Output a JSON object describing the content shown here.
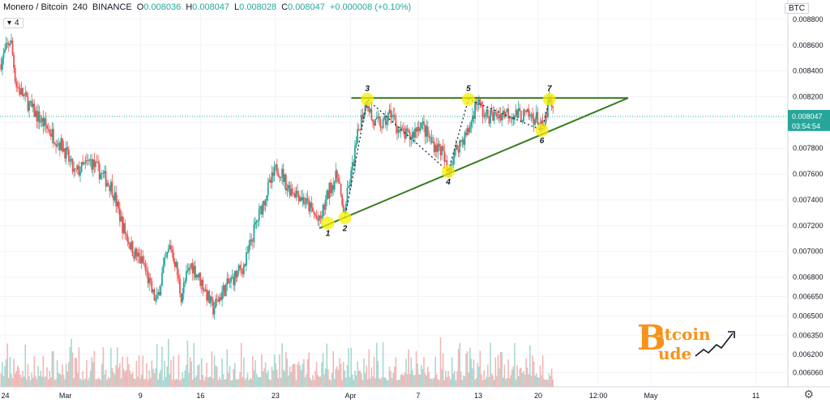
{
  "header": {
    "symbol": "Monero / Bitcoin",
    "interval": "240",
    "exchange": "BINANCE",
    "open_label": "O",
    "open": "0.008036",
    "high_label": "H",
    "high": "0.008047",
    "low_label": "L",
    "low": "0.008028",
    "close_label": "C",
    "close": "0.008047",
    "change": "+0.000008 (+0.10%)",
    "indicator_count": "4",
    "currency": "BTC"
  },
  "price_tag": {
    "value": "0.008047",
    "countdown": "03:54:54"
  },
  "colors": {
    "up": "#26a69a",
    "down": "#ef5350",
    "pattern": "#3a7d1e",
    "marker": "#f5f000",
    "grid": "#f0f3fa",
    "vol_up": "#a8d8d2",
    "vol_down": "#f3b7b5",
    "last_price": "#26a69a"
  },
  "chart_data": {
    "type": "candlestick",
    "title": "Monero / Bitcoin",
    "y_ticks": [
      "0.008800",
      "0.008600",
      "0.008400",
      "0.008200",
      "0.008000",
      "0.007800",
      "0.007600",
      "0.007400",
      "0.007200",
      "0.007000",
      "0.006800",
      "0.006650",
      "0.006500",
      "0.006350",
      "0.006200",
      "0.006060"
    ],
    "x_ticks": [
      "24",
      "Mar",
      "9",
      "16",
      "23",
      "Apr",
      "7",
      "13",
      "20",
      "12:00",
      "May",
      "11"
    ],
    "ylim": [
      0.00595,
      0.00895
    ],
    "price_path": [
      {
        "x": 0.0,
        "y": 0.00845
      },
      {
        "x": 1.0,
        "y": 0.00865
      },
      {
        "x": 1.5,
        "y": 0.0083
      },
      {
        "x": 3.0,
        "y": 0.0081
      },
      {
        "x": 5.0,
        "y": 0.0079
      },
      {
        "x": 6.0,
        "y": 0.0078
      },
      {
        "x": 7.0,
        "y": 0.0076
      },
      {
        "x": 8.5,
        "y": 0.0077
      },
      {
        "x": 9.5,
        "y": 0.0076
      },
      {
        "x": 10.5,
        "y": 0.0075
      },
      {
        "x": 11.5,
        "y": 0.0072
      },
      {
        "x": 12.5,
        "y": 0.007
      },
      {
        "x": 13.5,
        "y": 0.0069
      },
      {
        "x": 14.2,
        "y": 0.0067
      },
      {
        "x": 14.7,
        "y": 0.0066
      },
      {
        "x": 15.3,
        "y": 0.00685
      },
      {
        "x": 16.0,
        "y": 0.00705
      },
      {
        "x": 16.5,
        "y": 0.0069
      },
      {
        "x": 17.0,
        "y": 0.00665
      },
      {
        "x": 17.5,
        "y": 0.0068
      },
      {
        "x": 18.0,
        "y": 0.0069
      },
      {
        "x": 19.0,
        "y": 0.00675
      },
      {
        "x": 20.0,
        "y": 0.00655
      },
      {
        "x": 21.0,
        "y": 0.0067
      },
      {
        "x": 22.0,
        "y": 0.0068
      },
      {
        "x": 23.0,
        "y": 0.0069
      },
      {
        "x": 24.0,
        "y": 0.0072
      },
      {
        "x": 25.0,
        "y": 0.00745
      },
      {
        "x": 26.0,
        "y": 0.00765
      },
      {
        "x": 26.5,
        "y": 0.0076
      },
      {
        "x": 27.0,
        "y": 0.0075
      },
      {
        "x": 28.0,
        "y": 0.00745
      },
      {
        "x": 29.0,
        "y": 0.00735
      },
      {
        "x": 30.0,
        "y": 0.00722
      },
      {
        "x": 31.0,
        "y": 0.0075
      },
      {
        "x": 31.8,
        "y": 0.0076
      },
      {
        "x": 32.2,
        "y": 0.00726
      },
      {
        "x": 33.0,
        "y": 0.0076
      },
      {
        "x": 33.8,
        "y": 0.008
      },
      {
        "x": 34.5,
        "y": 0.00818
      },
      {
        "x": 35.0,
        "y": 0.008
      },
      {
        "x": 36.0,
        "y": 0.00798
      },
      {
        "x": 36.7,
        "y": 0.00808
      },
      {
        "x": 37.5,
        "y": 0.00793
      },
      {
        "x": 38.5,
        "y": 0.00788
      },
      {
        "x": 39.5,
        "y": 0.008
      },
      {
        "x": 40.5,
        "y": 0.00785
      },
      {
        "x": 41.5,
        "y": 0.00778
      },
      {
        "x": 42.0,
        "y": 0.00762
      },
      {
        "x": 43.0,
        "y": 0.00782
      },
      {
        "x": 44.0,
        "y": 0.00793
      },
      {
        "x": 44.8,
        "y": 0.00818
      },
      {
        "x": 45.5,
        "y": 0.00805
      },
      {
        "x": 46.5,
        "y": 0.00805
      },
      {
        "x": 47.5,
        "y": 0.00808
      },
      {
        "x": 48.5,
        "y": 0.00806
      },
      {
        "x": 49.5,
        "y": 0.00805
      },
      {
        "x": 50.5,
        "y": 0.00803
      },
      {
        "x": 51.0,
        "y": 0.00793
      },
      {
        "x": 51.6,
        "y": 0.00818
      },
      {
        "x": 52.0,
        "y": 0.008047
      }
    ],
    "x_span": [
      0,
      74
    ],
    "pattern": {
      "resistance": [
        {
          "x": 33.0,
          "y": 0.00819
        },
        {
          "x": 59.0,
          "y": 0.00819
        }
      ],
      "support": [
        {
          "x": 30.0,
          "y": 0.00718
        },
        {
          "x": 59.0,
          "y": 0.00819
        }
      ],
      "points": [
        {
          "label": "1",
          "x": 30.8,
          "y": 0.00722
        },
        {
          "label": "2",
          "x": 32.4,
          "y": 0.00726
        },
        {
          "label": "3",
          "x": 34.5,
          "y": 0.00818
        },
        {
          "label": "4",
          "x": 42.1,
          "y": 0.00762
        },
        {
          "label": "5",
          "x": 44.0,
          "y": 0.00818
        },
        {
          "label": "6",
          "x": 50.9,
          "y": 0.00794
        },
        {
          "label": "7",
          "x": 51.6,
          "y": 0.00818
        }
      ]
    },
    "grid": true
  },
  "watermark": {
    "word1_rest": "itcoin",
    "word2_rest": "ude",
    "initial": "B"
  },
  "axis": {
    "settings_icon": "gear-icon"
  }
}
